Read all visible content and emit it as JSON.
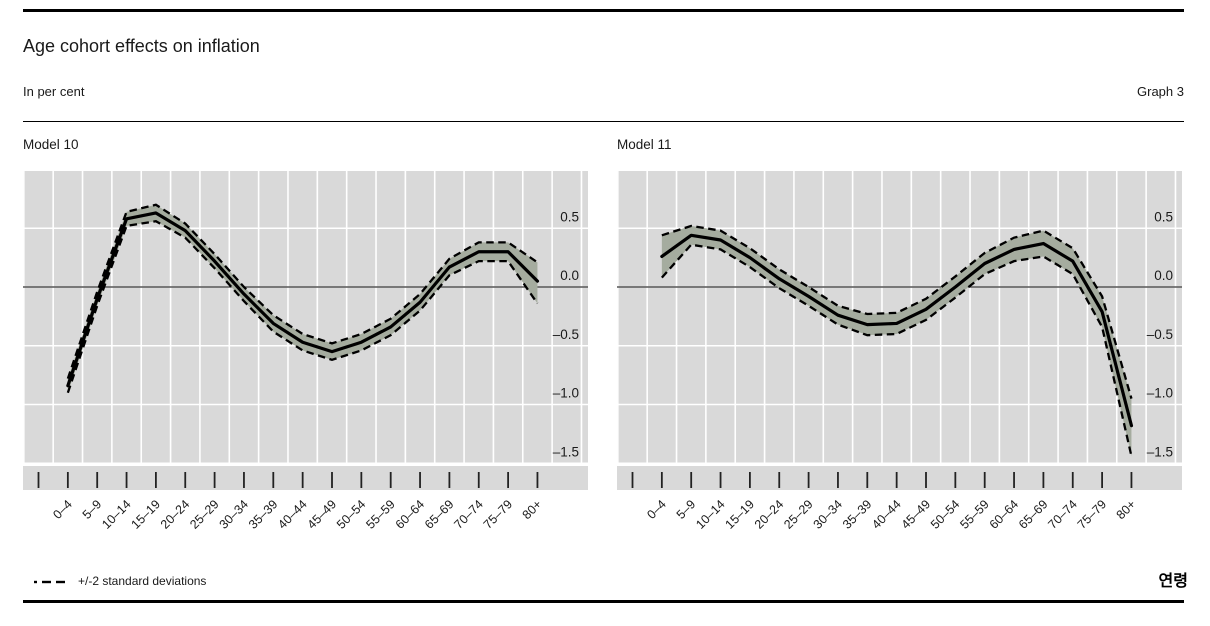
{
  "header": {
    "title": "Age cohort effects on inflation",
    "subtitle": "In per cent",
    "graph_label": "Graph 3"
  },
  "legend": {
    "label": "+/-2 standard deviations"
  },
  "x_axis_title": "연령",
  "colors": {
    "plot_bg": "#d9d9d9",
    "band_fill": "#a5ac9f",
    "grid": "#ffffff",
    "line": "#000000",
    "zero_line": "#333333"
  },
  "chart_data": {
    "type": "line",
    "xlabel": "연령",
    "ylabel": "In per cent",
    "ylim": [
      -1.5,
      1.0
    ],
    "grid": true,
    "y_tick_labels": [
      "0.5",
      "0.0",
      "–0.5",
      "–1.0",
      "–1.5"
    ],
    "y_tick_values": [
      0.5,
      0.0,
      -0.5,
      -1.0,
      -1.5
    ],
    "band_legend": "+/-2 standard deviations",
    "categories": [
      "0–4",
      "5–9",
      "10–14",
      "15–19",
      "20–24",
      "25–29",
      "30–34",
      "35–39",
      "40–44",
      "45–49",
      "50–54",
      "55–59",
      "60–64",
      "65–69",
      "70–74",
      "75–79",
      "80+"
    ],
    "panels": [
      {
        "title": "Model 10",
        "series_name": "cohort effect",
        "mean": [
          -0.84,
          -0.1,
          0.58,
          0.63,
          0.48,
          0.22,
          -0.06,
          -0.31,
          -0.47,
          -0.55,
          -0.47,
          -0.34,
          -0.13,
          0.17,
          0.3,
          0.3,
          0.05
        ],
        "band_low": [
          -0.9,
          -0.16,
          0.52,
          0.56,
          0.42,
          0.16,
          -0.12,
          -0.38,
          -0.54,
          -0.62,
          -0.54,
          -0.41,
          -0.2,
          0.1,
          0.22,
          0.22,
          -0.14
        ],
        "band_high": [
          -0.78,
          -0.04,
          0.64,
          0.7,
          0.54,
          0.28,
          0.0,
          -0.24,
          -0.4,
          -0.48,
          -0.4,
          -0.27,
          -0.06,
          0.24,
          0.38,
          0.38,
          0.21
        ]
      },
      {
        "title": "Model 11",
        "series_name": "cohort effect",
        "mean": [
          0.26,
          0.44,
          0.4,
          0.25,
          0.07,
          -0.08,
          -0.24,
          -0.32,
          -0.31,
          -0.19,
          0.0,
          0.2,
          0.32,
          0.37,
          0.22,
          -0.21,
          -1.18
        ],
        "band_low": [
          0.08,
          0.36,
          0.32,
          0.17,
          -0.01,
          -0.16,
          -0.32,
          -0.41,
          -0.4,
          -0.28,
          -0.09,
          0.11,
          0.22,
          0.26,
          0.11,
          -0.34,
          -1.44
        ],
        "band_high": [
          0.44,
          0.52,
          0.48,
          0.33,
          0.15,
          0.0,
          -0.16,
          -0.23,
          -0.22,
          -0.1,
          0.09,
          0.29,
          0.42,
          0.48,
          0.33,
          -0.08,
          -0.95
        ]
      }
    ]
  }
}
